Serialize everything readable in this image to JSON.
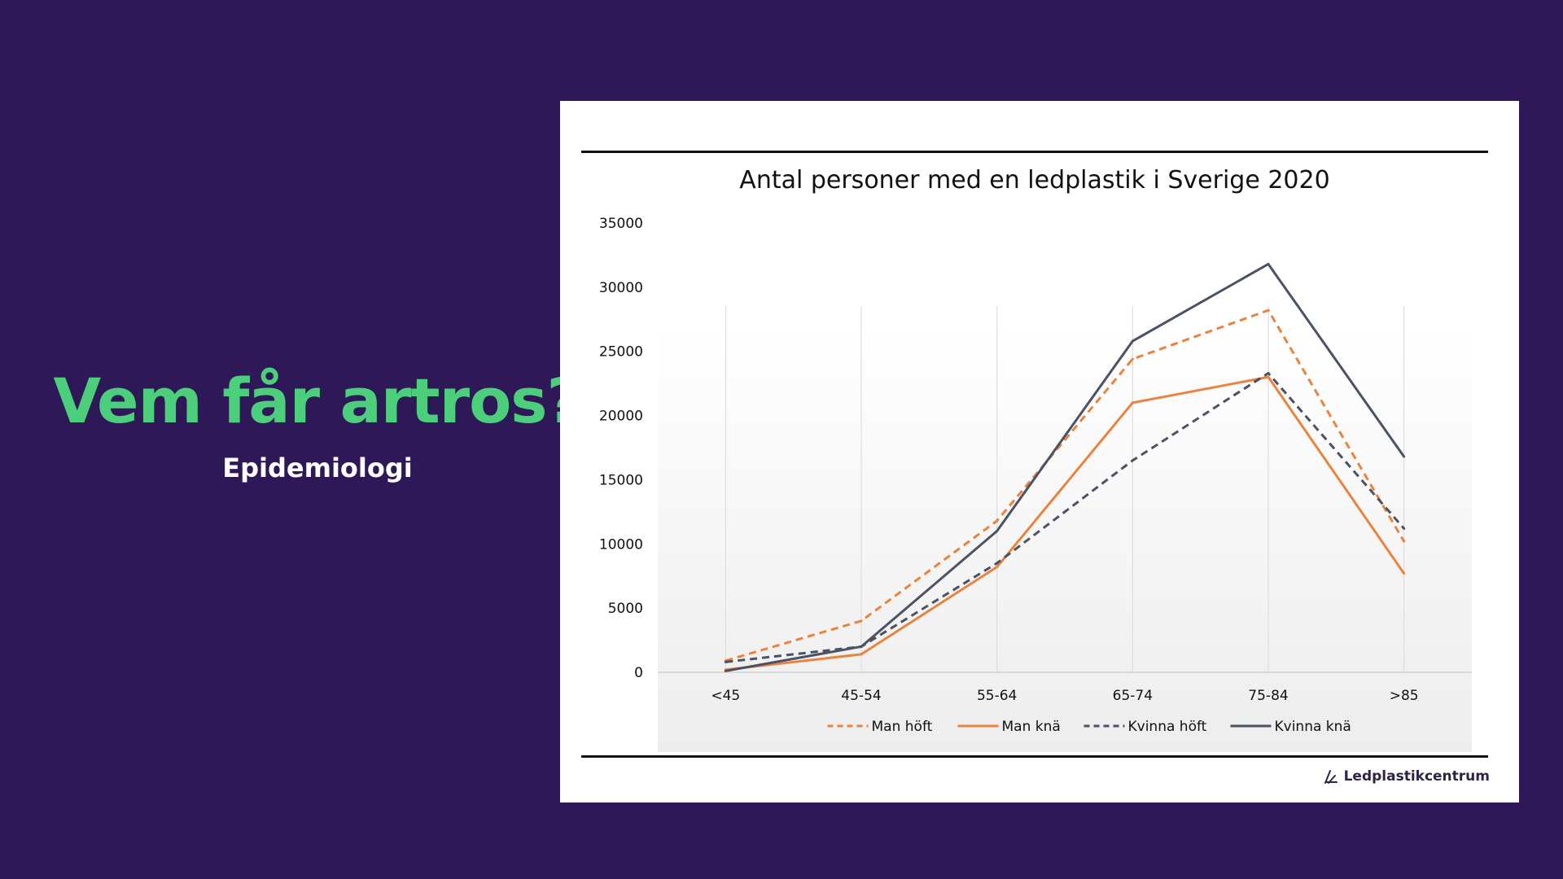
{
  "slide": {
    "title": "Vem får artros?",
    "subtitle": "Epidemiologi"
  },
  "logo": {
    "text": "Ledplastikcentrum",
    "icon": "ledplastik-logo-icon"
  },
  "colors": {
    "background": "#2f1858",
    "title": "#4ccf7a",
    "orange": "#e9833e",
    "slate": "#4a5263"
  },
  "chart_data": {
    "type": "line",
    "title": "Antal personer med en ledplastik i Sverige 2020",
    "xlabel": "",
    "ylabel": "",
    "categories": [
      "<45",
      "45-54",
      "55-64",
      "65-74",
      "75-84",
      ">85"
    ],
    "ylim": [
      0,
      35000
    ],
    "yticks": [
      0,
      5000,
      10000,
      15000,
      20000,
      25000,
      30000,
      35000
    ],
    "grid": "vertical lines at categories",
    "legend": "bottom",
    "series": [
      {
        "name": "Man höft",
        "values": [
          900,
          4000,
          11800,
          24400,
          28200,
          10200
        ],
        "color": "#e9833e",
        "dash": true
      },
      {
        "name": "Man knä",
        "values": [
          200,
          1400,
          8200,
          21000,
          23000,
          7700
        ],
        "color": "#e9833e",
        "dash": false
      },
      {
        "name": "Kvinna höft",
        "values": [
          800,
          2000,
          8500,
          16500,
          23300,
          11200
        ],
        "color": "#4a5263",
        "dash": true
      },
      {
        "name": "Kvinna knä",
        "values": [
          100,
          2000,
          11000,
          25800,
          31800,
          16800
        ],
        "color": "#4a5263",
        "dash": false
      }
    ]
  }
}
